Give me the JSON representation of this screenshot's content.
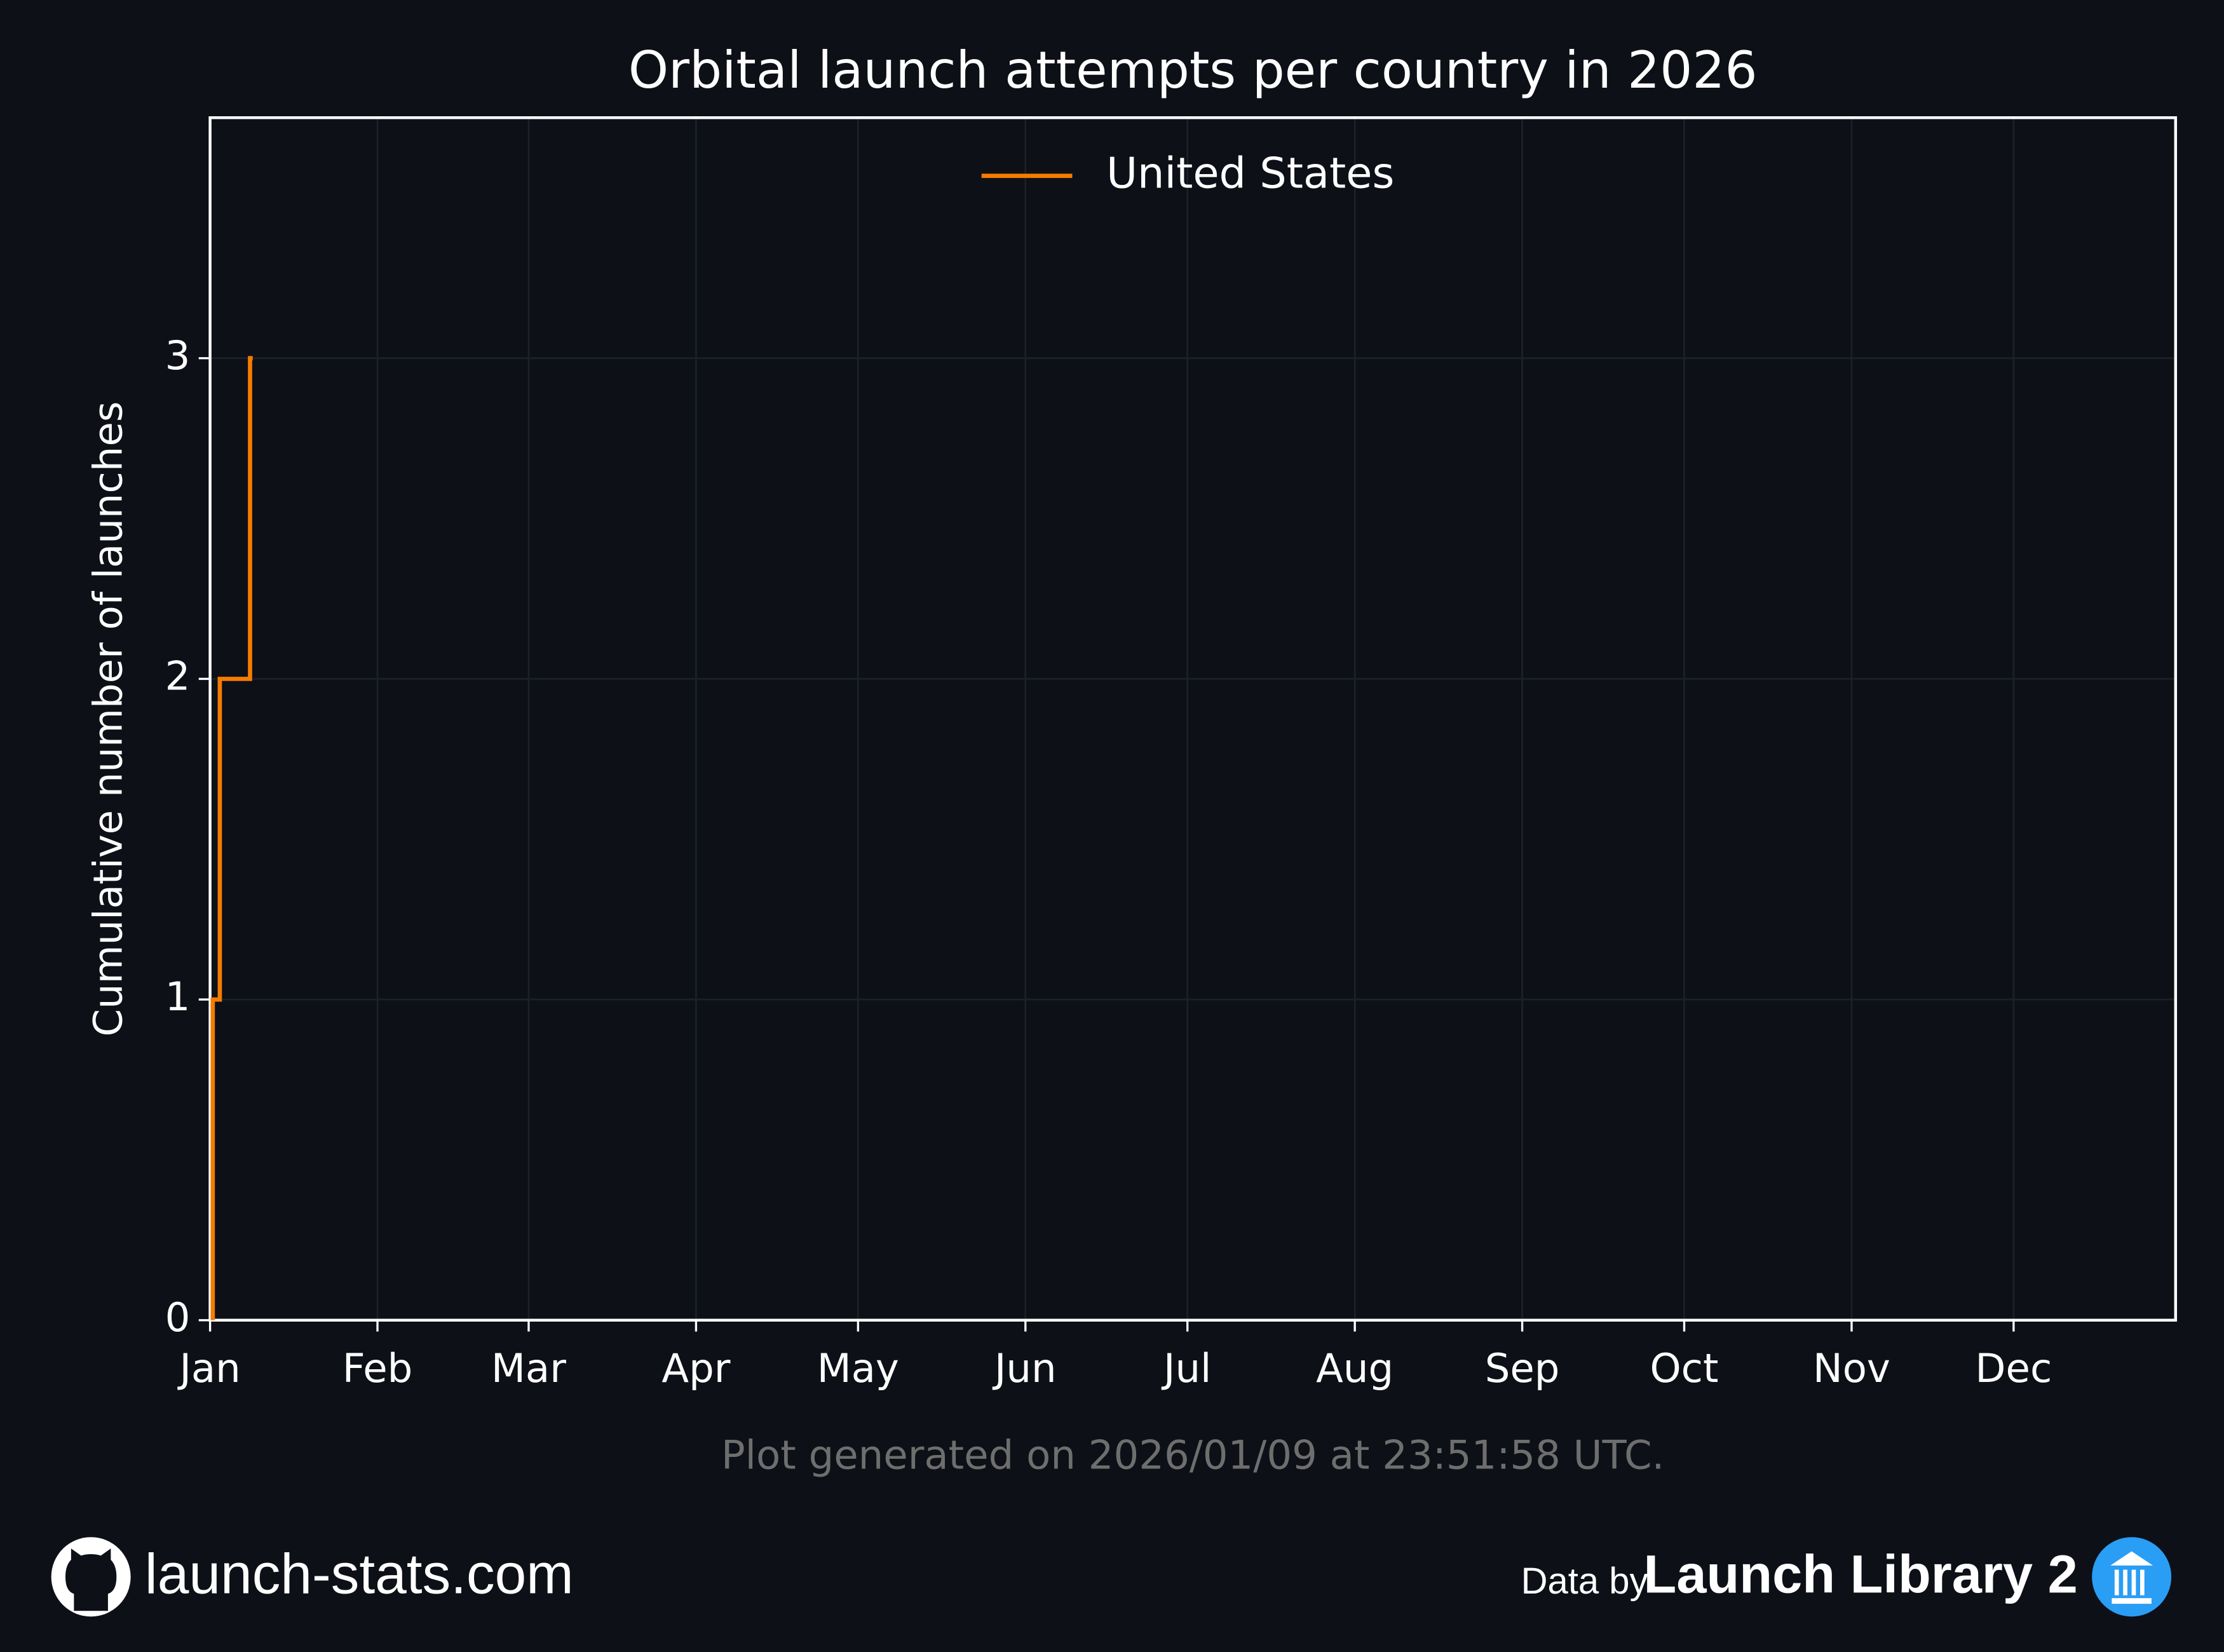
{
  "chart_data": {
    "type": "line",
    "step": "post",
    "title": "Orbital launch attempts per country in 2026",
    "y_label": "Cumulative number of launches",
    "x": [
      0.5,
      1.8,
      7.4,
      7.9
    ],
    "series": [
      {
        "name": "United States",
        "color": "#f57c00",
        "values": [
          1,
          2,
          3,
          3
        ]
      }
    ],
    "xlim": [
      0,
      364
    ],
    "xticks": [
      {
        "value": 0,
        "label": "Jan"
      },
      {
        "value": 31,
        "label": "Feb"
      },
      {
        "value": 59,
        "label": "Mar"
      },
      {
        "value": 90,
        "label": "Apr"
      },
      {
        "value": 120,
        "label": "May"
      },
      {
        "value": 151,
        "label": "Jun"
      },
      {
        "value": 181,
        "label": "Jul"
      },
      {
        "value": 212,
        "label": "Aug"
      },
      {
        "value": 243,
        "label": "Sep"
      },
      {
        "value": 273,
        "label": "Oct"
      },
      {
        "value": 304,
        "label": "Nov"
      },
      {
        "value": 334,
        "label": "Dec"
      }
    ],
    "ylim": [
      0,
      3.75
    ],
    "yticks": [
      0,
      1,
      2,
      3
    ],
    "grid": true,
    "legend": "upper center",
    "note": "Plot generated on 2026/01/09 at 23:51:58 UTC."
  },
  "footer": {
    "site": "launch-stats.com",
    "credit_prefix": "Data by",
    "credit": "Launch Library 2"
  }
}
